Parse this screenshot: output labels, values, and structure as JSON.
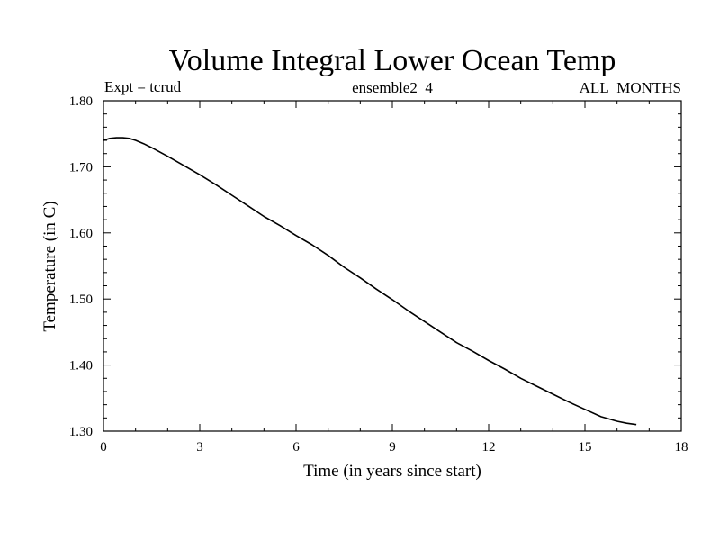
{
  "chart_data": {
    "type": "line",
    "title": "Volume Integral Lower Ocean Temp",
    "subtitle_left": "Expt = tcrud",
    "subtitle_center": "ensemble2_4",
    "subtitle_right": "ALL_MONTHS",
    "xlabel": "Time (in years since start)",
    "ylabel": "Temperature (in C)",
    "xlim": [
      0,
      18
    ],
    "ylim": [
      1.3,
      1.8
    ],
    "x_ticks": [
      "0",
      "3",
      "6",
      "9",
      "12",
      "15",
      "18"
    ],
    "y_ticks": [
      "1.30",
      "1.40",
      "1.50",
      "1.60",
      "1.70",
      "1.80"
    ],
    "grid": false,
    "series": [
      {
        "color": "#000000",
        "x": [
          0,
          0.2,
          0.4,
          0.6,
          0.8,
          1.0,
          1.25,
          1.5,
          2.0,
          2.5,
          3.0,
          3.5,
          4.0,
          4.5,
          5.0,
          5.5,
          6.0,
          6.5,
          7.0,
          7.5,
          8.0,
          8.5,
          9.0,
          9.5,
          10.0,
          10.5,
          11.0,
          11.5,
          12.0,
          12.5,
          13.0,
          13.5,
          14.0,
          14.5,
          15.0,
          15.5,
          16.0,
          16.3,
          16.6
        ],
        "y": [
          1.74,
          1.743,
          1.744,
          1.744,
          1.743,
          1.74,
          1.735,
          1.729,
          1.716,
          1.702,
          1.688,
          1.673,
          1.657,
          1.641,
          1.625,
          1.611,
          1.596,
          1.582,
          1.566,
          1.548,
          1.532,
          1.515,
          1.499,
          1.482,
          1.466,
          1.45,
          1.434,
          1.421,
          1.407,
          1.394,
          1.38,
          1.368,
          1.356,
          1.344,
          1.333,
          1.322,
          1.315,
          1.312,
          1.31
        ]
      }
    ]
  }
}
